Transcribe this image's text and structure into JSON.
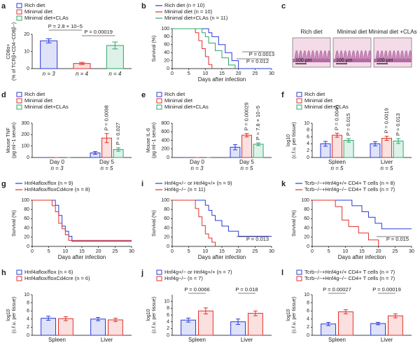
{
  "chart_data": [
    {
      "type": "bar",
      "label": "a",
      "ylabel": [
        "CD8α+",
        "(% of TCRβ+CD4−CD8β−)"
      ],
      "ylim": [
        0,
        20
      ],
      "yticks": [
        0,
        10,
        20
      ],
      "categories": [
        "n = 3",
        "n = 4",
        "n = 4"
      ],
      "values": [
        16.2,
        3,
        13.5
      ],
      "errors": [
        1.2,
        0.6,
        2
      ],
      "legend": [
        {
          "name": "Rich diet",
          "color": "#2a3bd6"
        },
        {
          "name": "Minimal diet",
          "color": "#e0312b"
        },
        {
          "name": "Minimal diet+CLAs",
          "color": "#2aa86a"
        }
      ],
      "annotations": [
        "P = 2.8 × 10−5",
        "P = 0.00019"
      ]
    },
    {
      "type": "line",
      "label": "b",
      "ylabel": [
        "Survival (%)"
      ],
      "xlabel": "Days after infection",
      "xlim": [
        0,
        30
      ],
      "xticks": [
        0,
        5,
        10,
        15,
        20,
        25,
        30
      ],
      "ylim": [
        0,
        100
      ],
      "yticks": [
        0,
        20,
        40,
        60,
        80,
        100
      ],
      "series": [
        {
          "name": "Rich diet (n = 10)",
          "color": "#2a3bd6",
          "x": [
            0,
            11,
            12,
            14,
            16,
            18,
            20,
            30
          ],
          "values": [
            100,
            90,
            80,
            60,
            40,
            20,
            0,
            0
          ]
        },
        {
          "name": "Minimal diet (n = 10)",
          "color": "#e0312b",
          "x": [
            0,
            7,
            8,
            9,
            10,
            11,
            12
          ],
          "values": [
            100,
            90,
            70,
            50,
            30,
            10,
            0
          ]
        },
        {
          "name": "Minimal diet+CLAs (n = 11)",
          "color": "#2aa86a",
          "x": [
            0,
            9,
            10,
            11,
            13,
            15,
            17,
            19
          ],
          "values": [
            100,
            90,
            80,
            64,
            45,
            27,
            9,
            0
          ]
        }
      ],
      "annotations": [
        "P = 0.012",
        "P = 0.0013"
      ]
    },
    {
      "type": "image",
      "label": "c",
      "panels": [
        {
          "title": "Rich diet",
          "scale": "100 μm"
        },
        {
          "title": "Minimal diet",
          "scale": "100 μm"
        },
        {
          "title": "Minimal diet +CLAs",
          "scale": "100 μm"
        }
      ]
    },
    {
      "type": "grouped_bar",
      "label": "d",
      "ylabel": [
        "Mouse TNF",
        "(pg ml−1 serum)"
      ],
      "ylim": [
        0,
        300
      ],
      "yticks": [
        0,
        100,
        200,
        300
      ],
      "categories": [
        "Day 0",
        "Day 5"
      ],
      "n_labels": [
        "n = 3",
        "n = 5"
      ],
      "series": [
        {
          "name": "Rich diet",
          "color": "#2a3bd6",
          "values": [
            0,
            40
          ],
          "errors": [
            0,
            12
          ]
        },
        {
          "name": "Minimal diet",
          "color": "#e0312b",
          "values": [
            0,
            170
          ],
          "errors": [
            0,
            40
          ]
        },
        {
          "name": "Minimal diet+CLAs",
          "color": "#2aa86a",
          "values": [
            0,
            70
          ],
          "errors": [
            0,
            15
          ]
        }
      ],
      "annotations": [
        "P = 0.0098",
        "P = 0.027"
      ]
    },
    {
      "type": "grouped_bar",
      "label": "e",
      "ylabel": [
        "Mouse IL-6",
        "(pg ml−1 serum)"
      ],
      "ylim": [
        0,
        800
      ],
      "yticks": [
        0,
        200,
        400,
        600,
        800
      ],
      "categories": [
        "Day 0",
        "Day 5"
      ],
      "n_labels": [
        "n = 3",
        "n = 5"
      ],
      "series": [
        {
          "name": "Rich diet",
          "color": "#2a3bd6",
          "values": [
            0,
            240
          ],
          "errors": [
            0,
            60
          ]
        },
        {
          "name": "Minimal diet",
          "color": "#e0312b",
          "values": [
            0,
            520
          ],
          "errors": [
            0,
            40
          ]
        },
        {
          "name": "Minimal diet+CLAs",
          "color": "#2aa86a",
          "values": [
            0,
            310
          ],
          "errors": [
            0,
            30
          ]
        }
      ],
      "annotations": [
        "P = 0.00029",
        "P = 7.6 × 10−5"
      ]
    },
    {
      "type": "grouped_bar",
      "label": "f",
      "ylabel": [
        "log10",
        "(c.f.u. per tissue)"
      ],
      "ylim": [
        0,
        10
      ],
      "yticks": [
        0,
        2,
        4,
        6,
        8,
        10
      ],
      "categories": [
        "Spleen",
        "Liver"
      ],
      "n_labels": [
        "n = 5",
        "n = 5"
      ],
      "series": [
        {
          "name": "Rich diet",
          "color": "#2a3bd6",
          "values": [
            4,
            4
          ],
          "errors": [
            0.7,
            0.6
          ]
        },
        {
          "name": "Minimal diet",
          "color": "#e0312b",
          "values": [
            6.5,
            5.6
          ],
          "errors": [
            0.6,
            0.6
          ]
        },
        {
          "name": "Minimal diet+CLAs",
          "color": "#2aa86a",
          "values": [
            5,
            4.8
          ],
          "errors": [
            0.5,
            0.7
          ]
        }
      ],
      "annotations": [
        "P = 0.0046",
        "P = 0.015",
        "P = 0.0019",
        "P = 0.013"
      ]
    },
    {
      "type": "line",
      "label": "g",
      "ylabel": [
        "Survival (%)"
      ],
      "xlabel": "Days after infection",
      "xlim": [
        0,
        30
      ],
      "xticks": [
        0,
        5,
        10,
        15,
        20,
        25,
        30
      ],
      "ylim": [
        0,
        100
      ],
      "yticks": [
        0,
        20,
        40,
        60,
        80,
        100
      ],
      "series": [
        {
          "name": "Hnf4aflox/flox (n = 9)",
          "color": "#2a3bd6",
          "x": [
            0,
            7,
            8,
            9,
            10,
            11,
            12,
            30
          ],
          "values": [
            100,
            89,
            67,
            44,
            33,
            22,
            11,
            11
          ]
        },
        {
          "name": "Hnf4aflox/floxCd4cre (n = 8)",
          "color": "#e0312b",
          "x": [
            0,
            6,
            7,
            8,
            9,
            10,
            11,
            12,
            30
          ],
          "values": [
            100,
            88,
            75,
            50,
            38,
            25,
            13,
            13,
            13
          ]
        }
      ],
      "annotations": []
    },
    {
      "type": "line",
      "label": "i",
      "ylabel": [
        "Survival (%)"
      ],
      "xlabel": "Days after infection",
      "xlim": [
        0,
        30
      ],
      "xticks": [
        0,
        5,
        10,
        15,
        20,
        25,
        30
      ],
      "ylim": [
        0,
        100
      ],
      "yticks": [
        0,
        20,
        40,
        60,
        80,
        100
      ],
      "series": [
        {
          "name": "Hnf4g+/− or Hnf4g+/+ (n = 9)",
          "color": "#2a3bd6",
          "x": [
            0,
            10,
            11,
            12,
            13,
            15,
            17,
            20,
            30
          ],
          "values": [
            100,
            89,
            78,
            67,
            56,
            44,
            33,
            22,
            22
          ]
        },
        {
          "name": "Hnf4g−/− (n = 11)",
          "color": "#e0312b",
          "x": [
            0,
            7,
            8,
            9,
            10,
            11,
            12,
            13
          ],
          "values": [
            100,
            82,
            64,
            45,
            27,
            18,
            9,
            0
          ]
        }
      ],
      "annotations": [
        "P = 0.013"
      ]
    },
    {
      "type": "line",
      "label": "k",
      "ylabel": [
        "Survival (%)"
      ],
      "xlabel": "Days after infection",
      "xlim": [
        0,
        30
      ],
      "xticks": [
        0,
        5,
        10,
        15,
        20,
        25,
        30
      ],
      "ylim": [
        0,
        100
      ],
      "yticks": [
        0,
        20,
        40,
        60,
        80,
        100
      ],
      "series": [
        {
          "name": "Tcrb−/−+Hnf4g+/+ CD4+ T cells (n = 8)",
          "color": "#2a3bd6",
          "x": [
            0,
            12,
            15,
            17,
            19,
            21,
            30
          ],
          "values": [
            100,
            88,
            75,
            63,
            50,
            38,
            38
          ]
        },
        {
          "name": "Tcrb−/−+Hnf4g−/− CD4+ T cells (n = 7)",
          "color": "#e0312b",
          "x": [
            0,
            7,
            9,
            11,
            14,
            17,
            20
          ],
          "values": [
            100,
            86,
            57,
            43,
            29,
            14,
            0
          ]
        }
      ],
      "annotations": [
        "P = 0.015"
      ]
    },
    {
      "type": "grouped_bar",
      "label": "h",
      "ylabel": [
        "log10",
        "(c.f.u. per tissue)"
      ],
      "ylim": [
        0,
        10
      ],
      "yticks": [
        0,
        2,
        4,
        6,
        8,
        10
      ],
      "categories": [
        "Spleen",
        "Liver"
      ],
      "series": [
        {
          "name": "Hnf4aflox/flox (n = 6)",
          "color": "#2a3bd6",
          "values": [
            4.2,
            4
          ],
          "errors": [
            0.5,
            0.4
          ]
        },
        {
          "name": "Hnf4aflox/floxCd4cre (n = 6)",
          "color": "#e0312b",
          "values": [
            4.1,
            3.8
          ],
          "errors": [
            0.5,
            0.4
          ]
        }
      ],
      "annotations": []
    },
    {
      "type": "grouped_bar",
      "label": "j",
      "ylabel": [
        "log10",
        "(c.f.u. per tissue)"
      ],
      "ylim": [
        0,
        12
      ],
      "yticks": [
        0,
        2,
        4,
        6,
        8,
        10
      ],
      "categories": [
        "Spleen",
        "Liver"
      ],
      "series": [
        {
          "name": "Hnf4g+/− or Hnf4g+/+ (n = 7)",
          "color": "#2a3bd6",
          "values": [
            4.5,
            4
          ],
          "errors": [
            0.6,
            0.8
          ]
        },
        {
          "name": "Hnf4g−/− (n = 7)",
          "color": "#e0312b",
          "values": [
            7.2,
            6.5
          ],
          "errors": [
            0.9,
            0.7
          ]
        }
      ],
      "annotations": [
        "P = 0.0066",
        "P = 0.018"
      ]
    },
    {
      "type": "grouped_bar",
      "label": "l",
      "ylabel": [
        "log10",
        "(c.f.u. per tissue)"
      ],
      "ylim": [
        0,
        10
      ],
      "yticks": [
        0,
        2,
        4,
        6,
        8,
        10
      ],
      "categories": [
        "Spleen",
        "Liver"
      ],
      "series": [
        {
          "name": "Tcrb−/−+Hnf4g+/+ CD4+ T cells (n = 7)",
          "color": "#2a3bd6",
          "values": [
            2.8,
            2.9
          ],
          "errors": [
            0.4,
            0.3
          ]
        },
        {
          "name": "Tcrb−/−+Hnf4g−/− CD4+ T cells (n = 7)",
          "color": "#e0312b",
          "values": [
            5.8,
            4.8
          ],
          "errors": [
            0.5,
            0.5
          ]
        }
      ],
      "annotations": [
        "P = 0.00027",
        "P = 0.00019"
      ]
    }
  ]
}
